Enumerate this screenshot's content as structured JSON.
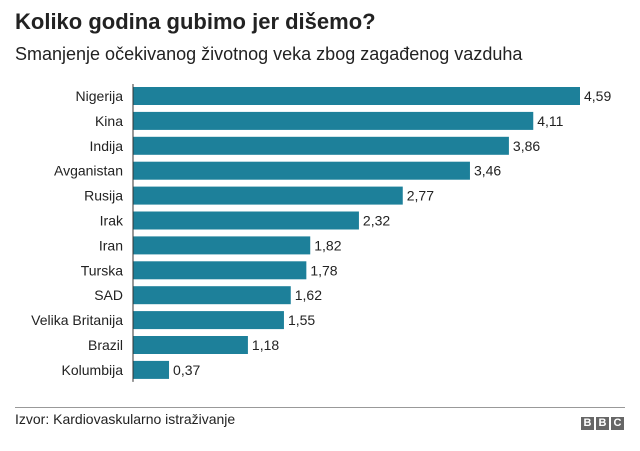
{
  "header": {
    "title": "Koliko godina gubimo jer dišemo?",
    "subtitle": "Smanjenje očekivanog životnog veka zbog zagađenog vazduha"
  },
  "footer": {
    "source": "Izvor: Kardiovaskularno istraživanje",
    "logo_letters": [
      "B",
      "B",
      "C"
    ]
  },
  "colors": {
    "bar": "#1d809a"
  },
  "chart_data": {
    "type": "bar",
    "orientation": "horizontal",
    "categories": [
      "Nigerija",
      "Kina",
      "Indija",
      "Avganistan",
      "Rusija",
      "Irak",
      "Iran",
      "Turska",
      "SAD",
      "Velika Britanija",
      "Brazil",
      "Kolumbija"
    ],
    "values": [
      4.59,
      4.11,
      3.86,
      3.46,
      2.77,
      2.32,
      1.82,
      1.78,
      1.62,
      1.55,
      1.18,
      0.37
    ],
    "value_labels": [
      "4,59",
      "4,11",
      "3,86",
      "3,46",
      "2,77",
      "2,32",
      "1,82",
      "1,78",
      "1,62",
      "1,55",
      "1,18",
      "0,37"
    ],
    "xlim": [
      0,
      4.59
    ],
    "grid": false,
    "legend": "none",
    "xlabel": "",
    "ylabel": ""
  }
}
